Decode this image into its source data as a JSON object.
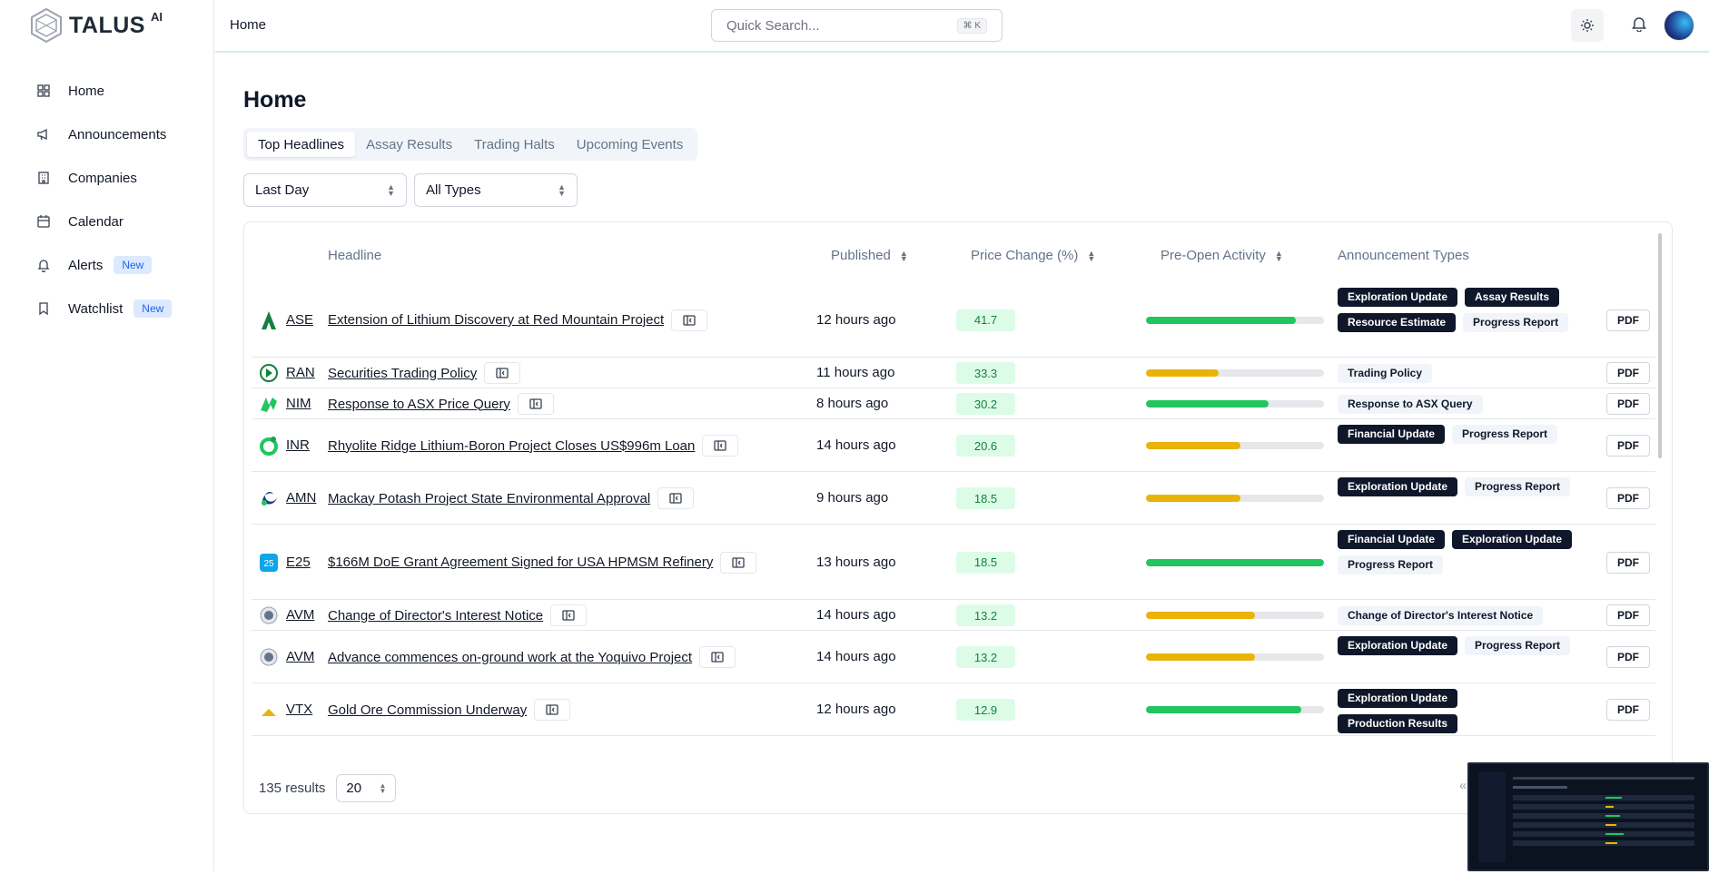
{
  "brand": {
    "name": "TALUS",
    "suffix": "AI"
  },
  "nav": [
    {
      "label": "Home",
      "icon": "grid-icon"
    },
    {
      "label": "Announcements",
      "icon": "megaphone-icon"
    },
    {
      "label": "Companies",
      "icon": "building-icon"
    },
    {
      "label": "Calendar",
      "icon": "calendar-icon"
    },
    {
      "label": "Alerts",
      "icon": "bell-icon",
      "badge": "New"
    },
    {
      "label": "Watchlist",
      "icon": "bookmark-icon",
      "badge": "New"
    }
  ],
  "topbar": {
    "breadcrumb": "Home",
    "search_placeholder": "Quick Search...",
    "search_shortcut": "⌘ K"
  },
  "page": {
    "title": "Home"
  },
  "tabs": [
    "Top Headlines",
    "Assay Results",
    "Trading Halts",
    "Upcoming Events"
  ],
  "filters": {
    "period": "Last Day",
    "type": "All Types"
  },
  "table": {
    "headers": {
      "headline": "Headline",
      "published": "Published",
      "price_change": "Price Change (%)",
      "pre_open": "Pre-Open Activity",
      "types": "Announcement Types"
    },
    "pdf_label": "PDF",
    "rows": [
      {
        "ticker": "ASE",
        "headline": "Extension of Lithium Discovery at Red Mountain Project",
        "published": "12 hours ago",
        "price_change": "41.7",
        "pre_open": 0.84,
        "bar_color": "#22c55e",
        "types": [
          [
            "Exploration Update",
            "d"
          ],
          [
            "Assay Results",
            "d"
          ],
          [
            "Resource Estimate",
            "d"
          ],
          [
            "Progress Report",
            "l"
          ]
        ]
      },
      {
        "ticker": "RAN",
        "headline": "Securities Trading Policy",
        "published": "11 hours ago",
        "price_change": "33.3",
        "pre_open": 0.41,
        "bar_color": "#eab308",
        "types": [
          [
            "Trading Policy",
            "l"
          ]
        ]
      },
      {
        "ticker": "NIM",
        "headline": "Response to ASX Price Query",
        "published": "8 hours ago",
        "price_change": "30.2",
        "pre_open": 0.69,
        "bar_color": "#22c55e",
        "types": [
          [
            "Response to ASX Query",
            "l"
          ]
        ]
      },
      {
        "ticker": "INR",
        "headline": "Rhyolite Ridge Lithium-Boron Project Closes US$996m Loan",
        "published": "14 hours ago",
        "price_change": "20.6",
        "pre_open": 0.53,
        "bar_color": "#eab308",
        "types": [
          [
            "Financial Update",
            "d"
          ],
          [
            "Progress Report",
            "l"
          ]
        ]
      },
      {
        "ticker": "AMN",
        "headline": "Mackay Potash Project State Environmental Approval",
        "published": "9 hours ago",
        "price_change": "18.5",
        "pre_open": 0.53,
        "bar_color": "#eab308",
        "types": [
          [
            "Exploration Update",
            "d"
          ],
          [
            "Progress Report",
            "l"
          ]
        ]
      },
      {
        "ticker": "E25",
        "headline": "$166M DoE Grant Agreement Signed for USA HPMSM Refinery",
        "published": "13 hours ago",
        "price_change": "18.5",
        "pre_open": 1.0,
        "bar_color": "#22c55e",
        "types": [
          [
            "Financial Update",
            "d"
          ],
          [
            "Exploration Update",
            "d"
          ],
          [
            "Progress Report",
            "l"
          ]
        ]
      },
      {
        "ticker": "AVM",
        "headline": "Change of Director's Interest Notice",
        "published": "14 hours ago",
        "price_change": "13.2",
        "pre_open": 0.61,
        "bar_color": "#eab308",
        "types": [
          [
            "Change of Director's Interest Notice",
            "l"
          ]
        ]
      },
      {
        "ticker": "AVM",
        "headline": "Advance commences on-ground work at the Yoquivo Project",
        "published": "14 hours ago",
        "price_change": "13.2",
        "pre_open": 0.61,
        "bar_color": "#eab308",
        "types": [
          [
            "Exploration Update",
            "d"
          ],
          [
            "Progress Report",
            "l"
          ]
        ]
      },
      {
        "ticker": "VTX",
        "headline": "Gold Ore Commission Underway",
        "published": "12 hours ago",
        "price_change": "12.9",
        "pre_open": 0.87,
        "bar_color": "#22c55e",
        "types": [
          [
            "Exploration Update",
            "d"
          ],
          [
            "Production Results",
            "d"
          ]
        ]
      }
    ]
  },
  "footer": {
    "results": "135 results",
    "page_size": "20",
    "first_page_glyph": "«"
  }
}
